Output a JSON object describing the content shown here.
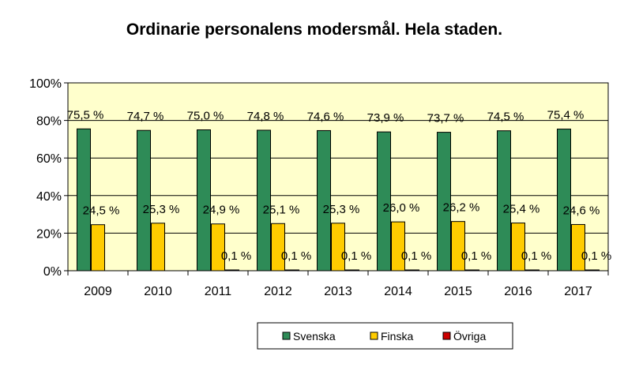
{
  "chart_data": {
    "type": "bar",
    "title": "Ordinarie personalens modersmål.  Hela staden.",
    "categories": [
      "2009",
      "2010",
      "2011",
      "2012",
      "2013",
      "2014",
      "2015",
      "2016",
      "2017"
    ],
    "series": [
      {
        "name": "Svenska",
        "color": "#2e8b57",
        "values": [
          75.5,
          74.7,
          75.0,
          74.8,
          74.6,
          73.9,
          73.7,
          74.5,
          75.4
        ],
        "labels": [
          "75,5 %",
          "74,7 %",
          "75,0 %",
          "74,8 %",
          "74,6 %",
          "73,9 %",
          "73,7 %",
          "74,5 %",
          "75,4 %"
        ]
      },
      {
        "name": "Finska",
        "color": "#ffcc00",
        "values": [
          24.5,
          25.3,
          24.9,
          25.1,
          25.3,
          26.0,
          26.2,
          25.4,
          24.6
        ],
        "labels": [
          "24,5 %",
          "25,3 %",
          "24,9 %",
          "25,1 %",
          "25,3 %",
          "26,0 %",
          "26,2 %",
          "25,4 %",
          "24,6 %"
        ]
      },
      {
        "name": "Övriga",
        "color": "#cc0000",
        "values": [
          0.0,
          0.0,
          0.1,
          0.1,
          0.1,
          0.1,
          0.1,
          0.1,
          0.1
        ],
        "labels": [
          "",
          "",
          "0,1 %",
          "0,1 %",
          "0,1 %",
          "0,1 %",
          "0,1 %",
          "0,1 %",
          "0,1 %"
        ]
      }
    ],
    "y_ticks": [
      "0%",
      "20%",
      "40%",
      "60%",
      "80%",
      "100%"
    ],
    "ylim": [
      0,
      100
    ],
    "grid": true,
    "plot_background": "#ffffcc",
    "legend_position": "bottom"
  }
}
